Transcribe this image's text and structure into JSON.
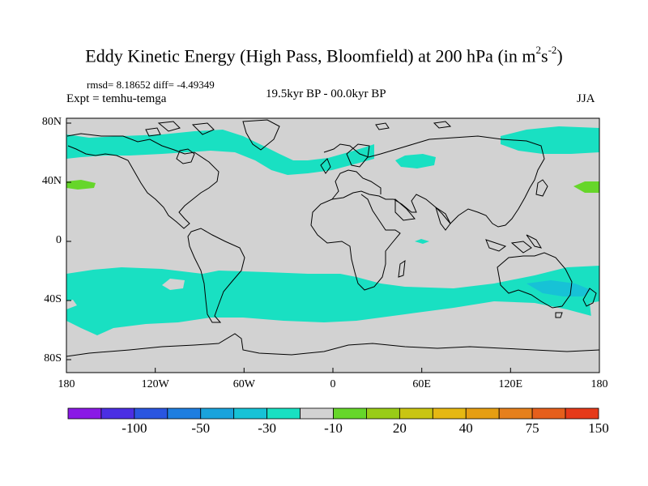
{
  "title": {
    "main": "Eddy Kinetic Energy (High Pass, Bloomfield) at 200 hPa (in m",
    "sup1": "2",
    "mid": "s",
    "sup2": "-2",
    "end": ")"
  },
  "stats": "rmsd= 8.18652 diff= -4.49349",
  "experiment": "Expt = temhu-temga",
  "period": "19.5kyr BP - 00.0kyr BP",
  "season": "JJA",
  "x_ticks": [
    "180",
    "120W",
    "60W",
    "0",
    "60E",
    "120E",
    "180"
  ],
  "y_ticks": [
    "80N",
    "40N",
    "0",
    "40S",
    "80S"
  ],
  "colorbar": {
    "labels": [
      "-100",
      "-50",
      "-30",
      "-10",
      "20",
      "40",
      "75",
      "150"
    ],
    "colors": [
      "#8a19e6",
      "#4b2ee3",
      "#2a55e0",
      "#1e7ee0",
      "#1aa3dc",
      "#17c2d6",
      "#19e0c2",
      "#d2d2d2",
      "#66d62a",
      "#99cc17",
      "#c9c512",
      "#e6b812",
      "#e69e12",
      "#e6801c",
      "#e65f1c",
      "#e63a1a"
    ]
  },
  "fill_colors": {
    "land_neutral": "#d2d2d2",
    "teal": "#19e0c2",
    "cyan": "#17c2d6",
    "green": "#66d62a",
    "coast": "#000000"
  }
}
